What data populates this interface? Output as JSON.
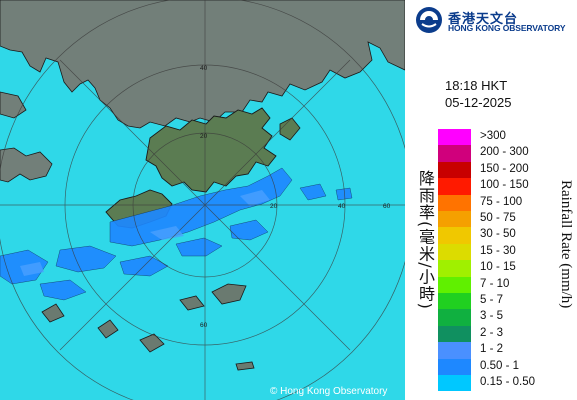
{
  "branding": {
    "name_cn": "香港天文台",
    "name_en": "HONG KONG OBSERVATORY",
    "copyright": "© Hong Kong Observatory"
  },
  "time": "18:18 HKT",
  "date": "05-12-2025",
  "legend": {
    "title_cn": "降雨率(毫米/小時)",
    "title_en": "Rainfall Rate (mm/h)",
    "items": [
      {
        "label": ">300",
        "color": "#ff00ff"
      },
      {
        "label": "200 - 300",
        "color": "#d0007c"
      },
      {
        "label": "150 - 200",
        "color": "#c80000"
      },
      {
        "label": "100 - 150",
        "color": "#ff1a00"
      },
      {
        "label": "75 - 100",
        "color": "#ff7300"
      },
      {
        "label": "50 - 75",
        "color": "#f5a000"
      },
      {
        "label": "30 - 50",
        "color": "#f0c800"
      },
      {
        "label": "15 - 30",
        "color": "#dcdc00"
      },
      {
        "label": "10 - 15",
        "color": "#a0f000"
      },
      {
        "label": "7 - 10",
        "color": "#60f000"
      },
      {
        "label": "5 - 7",
        "color": "#20d020"
      },
      {
        "label": "3 - 5",
        "color": "#10b040"
      },
      {
        "label": "2 - 3",
        "color": "#109060"
      },
      {
        "label": "1 - 2",
        "color": "#4a90ff"
      },
      {
        "label": "0.50 - 1",
        "color": "#1e88ff"
      },
      {
        "label": "0.15 - 0.50",
        "color": "#00c8ff"
      }
    ]
  },
  "map": {
    "range_ring_labels": [
      "20",
      "40",
      "60",
      "20",
      "40",
      "60"
    ],
    "colors": {
      "sea": "#2fd8e8",
      "land_hk": "#5a7a52",
      "land_mainland": "#6f7f7a"
    }
  }
}
